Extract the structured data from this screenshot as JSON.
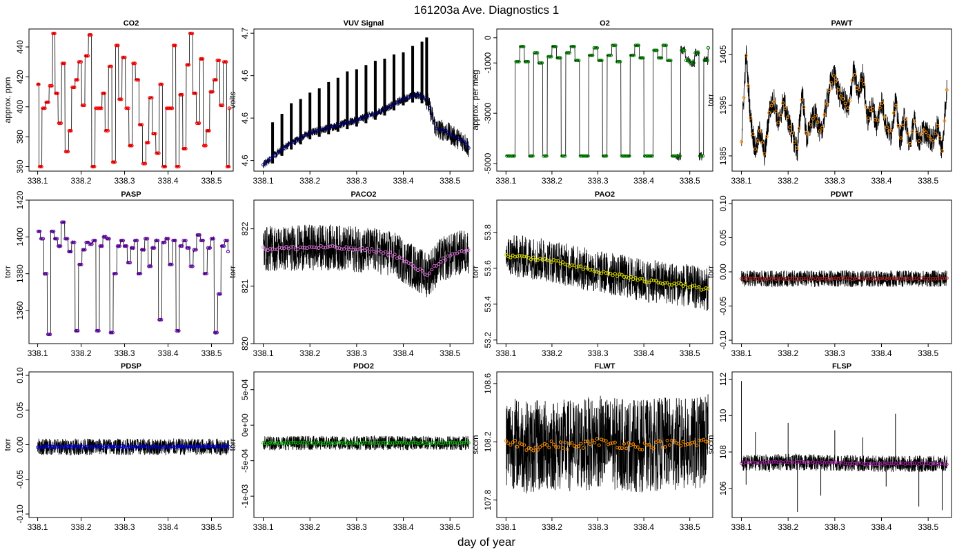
{
  "figure": {
    "title": "161203a   Ave. Diagnostics 1",
    "xlabel": "day of year"
  },
  "chart_data": [
    {
      "type": "line",
      "title": "CO2",
      "ylabel": "approx. ppm",
      "xlim": [
        338.08,
        338.55
      ],
      "ylim": [
        357,
        452
      ],
      "xticks": [
        338.1,
        338.2,
        338.3,
        338.4,
        338.5
      ],
      "yticks": [
        360,
        380,
        400,
        420,
        440
      ],
      "marker_color": "#ff0000",
      "line_color": "#000000",
      "noise": 0.5,
      "series": [
        {
          "x": [
            338.1,
            338.103,
            338.11,
            338.118,
            338.126,
            338.134,
            338.14,
            338.147,
            338.155,
            338.163,
            338.171,
            338.178,
            338.186,
            338.193,
            338.201,
            338.209,
            338.217,
            338.224,
            338.232,
            338.24,
            338.248,
            338.255,
            338.263,
            338.271,
            338.279,
            338.286,
            338.294,
            338.302,
            338.31,
            338.318,
            338.325,
            338.333,
            338.341,
            338.349,
            338.356,
            338.364,
            338.372,
            338.38,
            338.387,
            338.395,
            338.403,
            338.411,
            338.418,
            338.426,
            338.434,
            338.442,
            338.449,
            338.457,
            338.465,
            338.473,
            338.481,
            338.488,
            338.496,
            338.504,
            338.512,
            338.519,
            338.527,
            338.535,
            338.541
          ],
          "y": [
            415,
            360,
            399,
            403,
            414,
            449,
            409,
            389,
            429,
            370,
            384,
            413,
            418,
            430,
            401,
            434,
            448,
            360,
            399,
            399,
            409,
            384,
            427,
            363,
            441,
            405,
            433,
            399,
            374,
            429,
            418,
            388,
            362,
            376,
            406,
            382,
            369,
            415,
            360,
            399,
            399,
            441,
            360,
            408,
            372,
            428,
            449,
            409,
            389,
            432,
            374,
            384,
            410,
            418,
            431,
            401,
            430,
            360,
            399
          ]
        }
      ]
    },
    {
      "type": "line",
      "title": "VUV Signal",
      "ylabel": "volts",
      "xlim": [
        338.08,
        338.55
      ],
      "ylim": [
        4.585,
        4.652
      ],
      "xticks": [
        338.1,
        338.2,
        338.3,
        338.4,
        338.5
      ],
      "yticks": [
        4.59,
        4.61,
        4.63,
        4.65
      ],
      "marker_color": "#00008b",
      "line_color": "#000000",
      "noise": 0.002,
      "series": [
        {
          "x": [
            338.1,
            338.15,
            338.2,
            338.25,
            338.3,
            338.35,
            338.4,
            338.43,
            338.45,
            338.47,
            338.49,
            338.51,
            338.53,
            338.54
          ],
          "y": [
            4.588,
            4.597,
            4.603,
            4.606,
            4.609,
            4.613,
            4.619,
            4.621,
            4.619,
            4.605,
            4.604,
            4.601,
            4.599,
            4.596
          ]
        }
      ],
      "spikes": {
        "x": [
          338.12,
          338.14,
          338.16,
          338.18,
          338.2,
          338.22,
          338.24,
          338.26,
          338.28,
          338.3,
          338.32,
          338.34,
          338.36,
          338.38,
          338.4,
          338.42,
          338.44,
          338.45
        ],
        "y": [
          4.608,
          4.612,
          4.617,
          4.619,
          4.622,
          4.624,
          4.627,
          4.629,
          4.632,
          4.633,
          4.635,
          4.637,
          4.638,
          4.64,
          4.641,
          4.644,
          4.646,
          4.648
        ]
      }
    },
    {
      "type": "line",
      "title": "O2",
      "ylabel": "approx. per meg",
      "xlim": [
        338.08,
        338.55
      ],
      "ylim": [
        -5300,
        350
      ],
      "xticks": [
        338.1,
        338.2,
        338.3,
        338.4,
        338.5
      ],
      "yticks": [
        0,
        -1000,
        -3000,
        -5000
      ],
      "marker_color": "#008000",
      "line_color": "#000000",
      "noise": 30,
      "series": [
        {
          "x": [
            338.1,
            338.11,
            338.12,
            338.13,
            338.14,
            338.15,
            338.16,
            338.17,
            338.18,
            338.19,
            338.2,
            338.21,
            338.22,
            338.23,
            338.24,
            338.25,
            338.26,
            338.27,
            338.28,
            338.29,
            338.3,
            338.31,
            338.32,
            338.33,
            338.34,
            338.35,
            338.36,
            338.37,
            338.38,
            338.39,
            338.4,
            338.41,
            338.42,
            338.43,
            338.44,
            338.45,
            338.46,
            338.47,
            338.48,
            338.49,
            338.5,
            338.51,
            338.52,
            338.53,
            338.54
          ],
          "y": [
            -4700,
            -4700,
            -950,
            -350,
            -950,
            -4700,
            -600,
            -1000,
            -4700,
            -750,
            -350,
            -800,
            -4700,
            -600,
            -350,
            -900,
            -4700,
            -4700,
            -700,
            -400,
            -900,
            -4700,
            -700,
            -300,
            -950,
            -4700,
            -4700,
            -700,
            -300,
            -800,
            -4700,
            -4700,
            -500,
            -800,
            -300,
            -900,
            -4700,
            -4700,
            -500,
            -900,
            -1000,
            -600,
            -4700,
            -900,
            -400
          ]
        }
      ]
    },
    {
      "type": "line",
      "title": "PAWT",
      "ylabel": "torr",
      "xlim": [
        338.08,
        338.55
      ],
      "ylim": [
        1382,
        1410
      ],
      "xticks": [
        338.1,
        338.2,
        338.3,
        338.4,
        338.5
      ],
      "yticks": [
        1385,
        1395,
        1405
      ],
      "marker_color": "#ff8c00",
      "line_color": "#000000",
      "noise": 2.5,
      "series": [
        {
          "x": [
            338.1,
            338.11,
            338.12,
            338.13,
            338.14,
            338.15,
            338.16,
            338.17,
            338.18,
            338.19,
            338.2,
            338.21,
            338.22,
            338.23,
            338.24,
            338.25,
            338.26,
            338.27,
            338.28,
            338.29,
            338.3,
            338.31,
            338.32,
            338.33,
            338.34,
            338.35,
            338.36,
            338.37,
            338.38,
            338.39,
            338.4,
            338.41,
            338.42,
            338.43,
            338.44,
            338.45,
            338.46,
            338.47,
            338.48,
            338.49,
            338.5,
            338.51,
            338.52,
            338.53,
            338.54
          ],
          "y": [
            1388,
            1405,
            1392,
            1386,
            1390,
            1385,
            1394,
            1396,
            1391,
            1396,
            1392,
            1389,
            1386,
            1398,
            1388,
            1392,
            1393,
            1389,
            1394,
            1399,
            1401,
            1397,
            1396,
            1394,
            1402,
            1397,
            1401,
            1392,
            1395,
            1391,
            1396,
            1391,
            1389,
            1396,
            1388,
            1393,
            1387,
            1392,
            1388,
            1390,
            1389,
            1388,
            1391,
            1386,
            1398
          ]
        }
      ]
    },
    {
      "type": "line",
      "title": "PASP",
      "ylabel": "torr",
      "xlim": [
        338.08,
        338.55
      ],
      "ylim": [
        1342,
        1420
      ],
      "xticks": [
        338.1,
        338.2,
        338.3,
        338.4,
        338.5
      ],
      "yticks": [
        1360,
        1380,
        1400,
        1420
      ],
      "marker_color": "#6a0dad",
      "line_color": "#000000",
      "noise": 1,
      "series": [
        {
          "x": [
            338.1,
            338.106,
            338.114,
            338.122,
            338.13,
            338.138,
            338.146,
            338.154,
            338.162,
            338.17,
            338.178,
            338.186,
            338.194,
            338.202,
            338.21,
            338.218,
            338.226,
            338.234,
            338.242,
            338.25,
            338.258,
            338.266,
            338.274,
            338.282,
            338.29,
            338.298,
            338.306,
            338.314,
            338.322,
            338.33,
            338.338,
            338.346,
            338.354,
            338.362,
            338.37,
            338.378,
            338.386,
            338.394,
            338.402,
            338.41,
            338.418,
            338.426,
            338.434,
            338.442,
            338.45,
            338.458,
            338.466,
            338.474,
            338.482,
            338.49,
            338.498,
            338.506,
            338.514,
            338.522,
            338.53,
            338.538
          ],
          "y": [
            1403,
            1399,
            1380,
            1347,
            1403,
            1399,
            1395,
            1408,
            1399,
            1392,
            1397,
            1349,
            1385,
            1393,
            1397,
            1396,
            1398,
            1349,
            1395,
            1400,
            1399,
            1348,
            1380,
            1395,
            1398,
            1395,
            1386,
            1394,
            1398,
            1380,
            1393,
            1399,
            1384,
            1394,
            1398,
            1355,
            1397,
            1399,
            1385,
            1398,
            1349,
            1395,
            1398,
            1394,
            1384,
            1393,
            1401,
            1398,
            1380,
            1394,
            1399,
            1348,
            1369,
            1395,
            1398,
            1392
          ]
        }
      ]
    },
    {
      "type": "line",
      "title": "PACO2",
      "ylabel": "torr",
      "xlim": [
        338.08,
        338.55
      ],
      "ylim": [
        820,
        822.5
      ],
      "xticks": [
        338.1,
        338.2,
        338.3,
        338.4,
        338.5
      ],
      "yticks": [
        820.0,
        821.0,
        822.0
      ],
      "marker_color": "#da70d6",
      "line_color": "#000000",
      "noise": 0.4,
      "series": [
        {
          "x": [
            338.1,
            338.14,
            338.18,
            338.22,
            338.26,
            338.3,
            338.34,
            338.38,
            338.42,
            338.45,
            338.48,
            338.51,
            338.54
          ],
          "y": [
            821.65,
            821.66,
            821.67,
            821.68,
            821.67,
            821.64,
            821.62,
            821.55,
            821.35,
            821.2,
            821.45,
            821.55,
            821.62
          ]
        }
      ]
    },
    {
      "type": "line",
      "title": "PAO2",
      "ylabel": "torr",
      "xlim": [
        338.08,
        338.55
      ],
      "ylim": [
        53.18,
        53.98
      ],
      "xticks": [
        338.1,
        338.2,
        338.3,
        338.4,
        338.5
      ],
      "yticks": [
        53.2,
        53.4,
        53.6,
        53.8
      ],
      "marker_color": "#e0e000",
      "line_color": "#000000",
      "noise": 0.12,
      "series": [
        {
          "x": [
            338.1,
            338.15,
            338.2,
            338.25,
            338.3,
            338.35,
            338.4,
            338.45,
            338.5,
            338.54
          ],
          "y": [
            53.67,
            53.66,
            53.64,
            53.61,
            53.58,
            53.56,
            53.53,
            53.52,
            53.5,
            53.48
          ]
        }
      ]
    },
    {
      "type": "line",
      "title": "PDWT",
      "ylabel": "torr",
      "xlim": [
        338.08,
        338.55
      ],
      "ylim": [
        -0.105,
        0.105
      ],
      "xticks": [
        338.1,
        338.2,
        338.3,
        338.4,
        338.5
      ],
      "yticks": [
        -0.1,
        -0.05,
        0,
        0.05,
        0.1
      ],
      "marker_color": "#b22222",
      "line_color": "#000000",
      "noise": 0.012,
      "series": [
        {
          "x": [
            338.1,
            338.54
          ],
          "y": [
            -0.01,
            -0.01
          ]
        }
      ]
    },
    {
      "type": "line",
      "title": "PDSP",
      "ylabel": "torr",
      "xlim": [
        338.08,
        338.55
      ],
      "ylim": [
        -0.105,
        0.105
      ],
      "xticks": [
        338.1,
        338.2,
        338.3,
        338.4,
        338.5
      ],
      "yticks": [
        -0.1,
        -0.05,
        0,
        0.05,
        0.1
      ],
      "marker_color": "#0000ff",
      "line_color": "#000000",
      "noise": 0.012,
      "series": [
        {
          "x": [
            338.1,
            338.54
          ],
          "y": [
            -0.003,
            -0.003
          ]
        }
      ]
    },
    {
      "type": "line",
      "title": "PDO2",
      "ylabel": "torr",
      "xlim": [
        338.08,
        338.55
      ],
      "ylim": [
        -0.0013,
        0.00075
      ],
      "xticks": [
        338.1,
        338.2,
        338.3,
        338.4,
        338.5
      ],
      "yticks": [
        -0.001,
        -0.0005,
        0,
        0.0005
      ],
      "ytick_labels": [
        "-1e-03",
        "-5e-04",
        "0e+00",
        "5e-04"
      ],
      "marker_color": "#00c800",
      "line_color": "#000000",
      "noise": 0.0001,
      "series": [
        {
          "x": [
            338.1,
            338.54
          ],
          "y": [
            -0.00025,
            -0.00025
          ]
        }
      ]
    },
    {
      "type": "line",
      "title": "FLWT",
      "ylabel": "sccm",
      "xlim": [
        338.08,
        338.55
      ],
      "ylim": [
        107.68,
        108.68
      ],
      "xticks": [
        338.1,
        338.2,
        338.3,
        338.4,
        338.5
      ],
      "yticks": [
        107.8,
        108.2,
        108.6
      ],
      "marker_color": "#ff8c00",
      "line_color": "#000000",
      "noise": 0.32,
      "series": [
        {
          "x": [
            338.1,
            338.15,
            338.2,
            338.25,
            338.3,
            338.35,
            338.4,
            338.45,
            338.5,
            338.54
          ],
          "y": [
            108.21,
            108.16,
            108.18,
            108.17,
            108.2,
            108.18,
            108.17,
            108.19,
            108.18,
            108.21
          ]
        }
      ]
    },
    {
      "type": "line",
      "title": "FLSP",
      "ylabel": "sccm",
      "xlim": [
        338.08,
        338.55
      ],
      "ylim": [
        104.4,
        112.4
      ],
      "xticks": [
        338.1,
        338.2,
        338.3,
        338.4,
        338.5
      ],
      "yticks": [
        106,
        108,
        110,
        112
      ],
      "marker_color": "#a020a0",
      "line_color": "#000000",
      "noise": 0.45,
      "series": [
        {
          "x": [
            338.1,
            338.2,
            338.3,
            338.4,
            338.54
          ],
          "y": [
            107.4,
            107.45,
            107.4,
            107.35,
            107.35
          ]
        }
      ],
      "outliers": {
        "x": [
          338.1,
          338.11,
          338.13,
          338.16,
          338.2,
          338.22,
          338.27,
          338.3,
          338.36,
          338.41,
          338.43,
          338.48,
          338.53
        ],
        "y": [
          111.9,
          106.2,
          109.1,
          106.9,
          109.6,
          104.7,
          105.6,
          109.2,
          108.8,
          106.1,
          110.1,
          105.0,
          104.8
        ]
      }
    }
  ]
}
